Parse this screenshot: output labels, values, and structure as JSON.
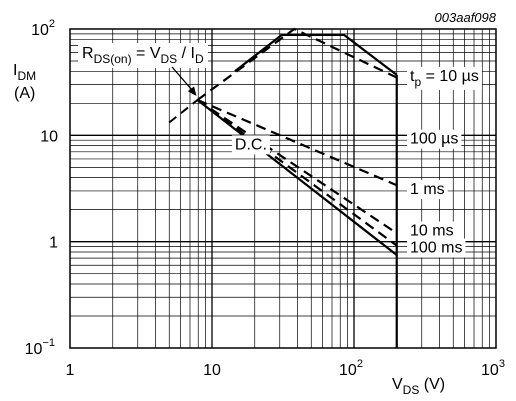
{
  "chart_data": {
    "type": "line",
    "figure_code": "003aaf098",
    "x_scale": "log",
    "y_scale": "log",
    "xlim": [
      1,
      1000
    ],
    "ylim": [
      0.1,
      100
    ],
    "grid": true,
    "x_ticks": [
      {
        "value": 1,
        "base": "1",
        "exp": ""
      },
      {
        "value": 10,
        "base": "10",
        "exp": ""
      },
      {
        "value": 100,
        "base": "10",
        "exp": "2"
      },
      {
        "value": 1000,
        "base": "10",
        "exp": "3"
      }
    ],
    "y_ticks": [
      {
        "value": 100,
        "base": "10",
        "exp": "2"
      },
      {
        "value": 10,
        "base": "10",
        "exp": ""
      },
      {
        "value": 1,
        "base": "1",
        "exp": ""
      },
      {
        "value": 0.1,
        "base": "10",
        "exp": "−1"
      }
    ],
    "xlabel": {
      "main": "V",
      "sub": "DS",
      "unit": " (V)"
    },
    "ylabel": {
      "main": "I",
      "sub": "DM",
      "unit": "(A)"
    },
    "rds_annotation": {
      "parts": [
        {
          "t": "R",
          "s": "DS(on)"
        },
        {
          "t": " = V",
          "s": "DS"
        },
        {
          "t": " / I",
          "s": "D"
        }
      ]
    },
    "rds_limit_line": {
      "x": [
        5,
        7.9
      ],
      "y": [
        13.2,
        21.5
      ]
    },
    "series": [
      {
        "name_main": "t",
        "name_sub": "p",
        "name_rest": " = 10 µs",
        "label_value": 37,
        "style": "solid",
        "x": [
          14.5,
          31,
          85,
          200,
          200
        ],
        "y": [
          40,
          88,
          88,
          37,
          37
        ]
      },
      {
        "name_main": "100 µs",
        "label_value": 9.5,
        "style": "dashed",
        "x": [
          7.9,
          38,
          200,
          200
        ],
        "y": [
          21.5,
          100,
          35,
          35
        ]
      },
      {
        "name_main": "1 ms",
        "label_value": 3.2,
        "style": "dashed",
        "x": [
          7.9,
          200
        ],
        "y": [
          21.5,
          3.4
        ]
      },
      {
        "name_main": "10 ms",
        "label_value": 1.3,
        "style": "dashed",
        "x": [
          7.9,
          200
        ],
        "y": [
          21.5,
          1.2
        ]
      },
      {
        "name_main": "100 ms",
        "label_value": 0.9,
        "style": "dashed",
        "x": [
          7.9,
          200
        ],
        "y": [
          21.5,
          0.92
        ]
      },
      {
        "name_main": "D.C.",
        "label_value": 8.4,
        "label_x": 14.5,
        "style": "solid",
        "x": [
          7.9,
          200
        ],
        "y": [
          21.5,
          0.75
        ]
      }
    ],
    "vertical_limit": {
      "x": 200,
      "y": [
        0.1,
        37
      ]
    }
  }
}
